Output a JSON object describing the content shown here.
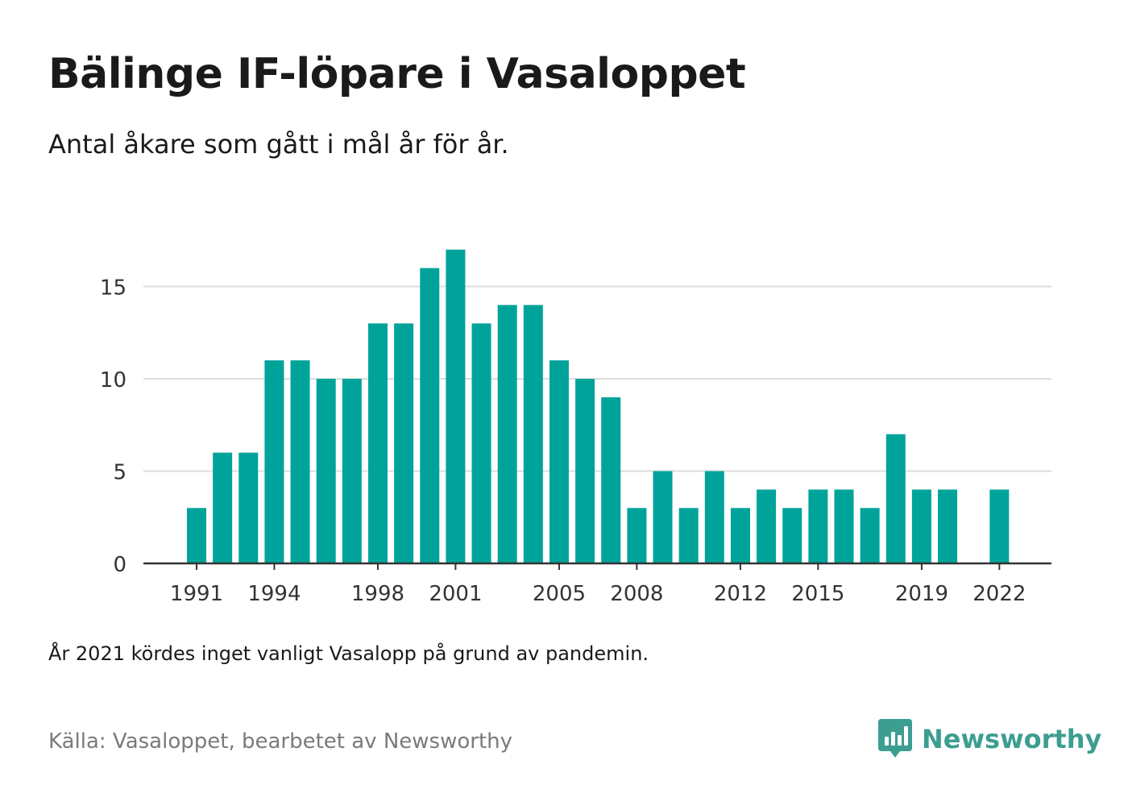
{
  "title": "Bälinge IF-löpare i Vasaloppet",
  "subtitle": "Antal åkare som gått i mål år för år.",
  "note": "År 2021 kördes inget vanligt Vasalopp på grund av pandemin.",
  "source": "Källa: Vasaloppet, bearbetet av Newsworthy",
  "brand": {
    "name": "Newsworthy",
    "color": "#3c9e91",
    "icon": "newsworthy-logo-icon"
  },
  "colors": {
    "bar": "#00a39a",
    "grid": "#dddddd",
    "axis": "#333333"
  },
  "chart_data": {
    "type": "bar",
    "categories": [
      1991,
      1992,
      1993,
      1994,
      1995,
      1996,
      1997,
      1998,
      1999,
      2000,
      2001,
      2002,
      2003,
      2004,
      2005,
      2006,
      2007,
      2008,
      2009,
      2010,
      2011,
      2012,
      2013,
      2014,
      2015,
      2016,
      2017,
      2018,
      2019,
      2020,
      2021,
      2022
    ],
    "values": [
      3,
      6,
      6,
      11,
      11,
      10,
      10,
      13,
      13,
      16,
      17,
      13,
      14,
      14,
      11,
      10,
      9,
      3,
      5,
      3,
      5,
      3,
      4,
      3,
      4,
      4,
      3,
      7,
      4,
      4,
      null,
      4
    ],
    "x_ticks": [
      1991,
      1994,
      1998,
      2001,
      2005,
      2008,
      2012,
      2015,
      2019,
      2022
    ],
    "y_ticks": [
      0,
      5,
      10,
      15
    ],
    "ylim": [
      0,
      17
    ],
    "xlabel": "",
    "ylabel": "",
    "grid": true
  }
}
